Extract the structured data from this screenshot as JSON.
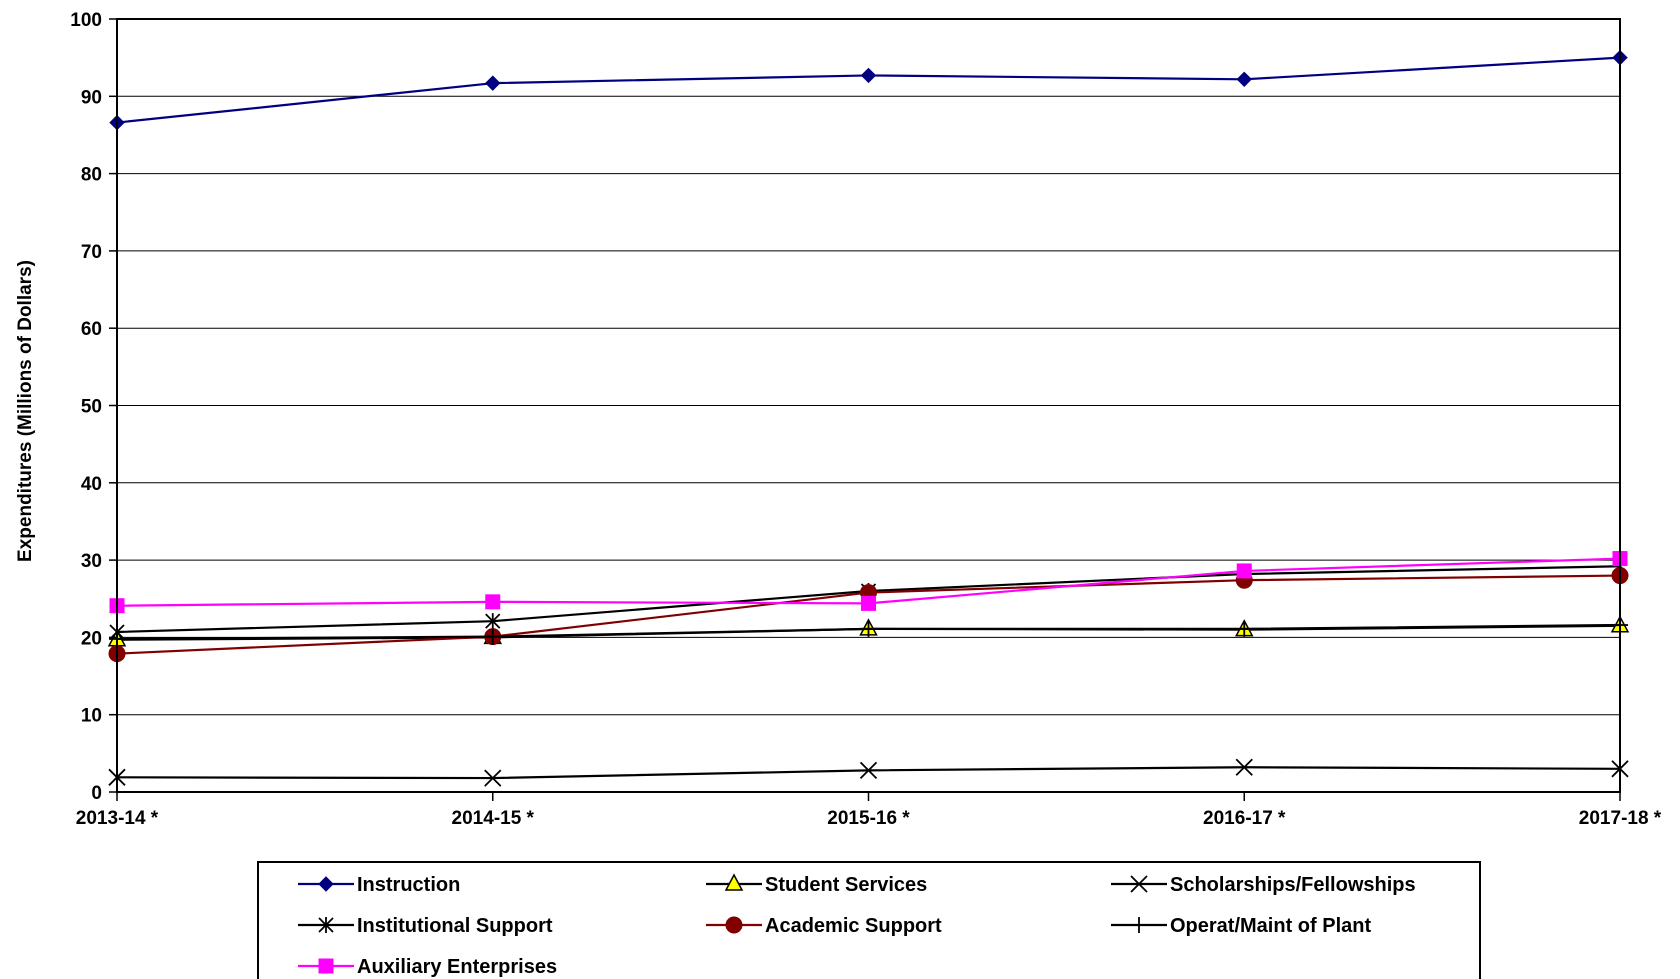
{
  "chart_data": {
    "type": "line",
    "title": "",
    "xlabel": "",
    "ylabel": "Expenditures (Millions of Dollars)",
    "categories": [
      "2013-14 *",
      "2014-15 *",
      "2015-16 *",
      "2016-17 *",
      "2017-18 *"
    ],
    "ylim": [
      0,
      100
    ],
    "yticks": [
      "0",
      "10",
      "20",
      "30",
      "40",
      "50",
      "60",
      "70",
      "80",
      "90",
      "100"
    ],
    "grid": true,
    "legend_position": "bottom",
    "series": [
      {
        "name": "Instruction",
        "values": [
          86.6,
          91.7,
          92.7,
          92.2,
          95.0
        ],
        "color": "#000080",
        "marker": "diamond"
      },
      {
        "name": "Student Services",
        "values": [
          19.7,
          20.0,
          21.1,
          21.0,
          21.5
        ],
        "color": "#000000",
        "marker": "triangle",
        "marker_fill": "#ffff00"
      },
      {
        "name": "Scholarships/Fellowships",
        "values": [
          1.9,
          1.8,
          2.8,
          3.2,
          3.0
        ],
        "color": "#000000",
        "marker": "x"
      },
      {
        "name": "Institutional Support",
        "values": [
          20.7,
          22.1,
          26.0,
          28.2,
          29.2
        ],
        "color": "#000000",
        "marker": "asterisk"
      },
      {
        "name": "Academic Support",
        "values": [
          17.9,
          20.1,
          25.8,
          27.4,
          28.0
        ],
        "color": "#800000",
        "marker": "circle"
      },
      {
        "name": "Operat/Maint of Plant",
        "values": [
          19.8,
          20.1,
          21.1,
          21.1,
          21.6
        ],
        "color": "#000000",
        "marker": "plus"
      },
      {
        "name": "Auxiliary Enterprises",
        "values": [
          24.1,
          24.6,
          24.4,
          28.6,
          30.2
        ],
        "color": "#ff00ff",
        "marker": "square"
      }
    ]
  }
}
